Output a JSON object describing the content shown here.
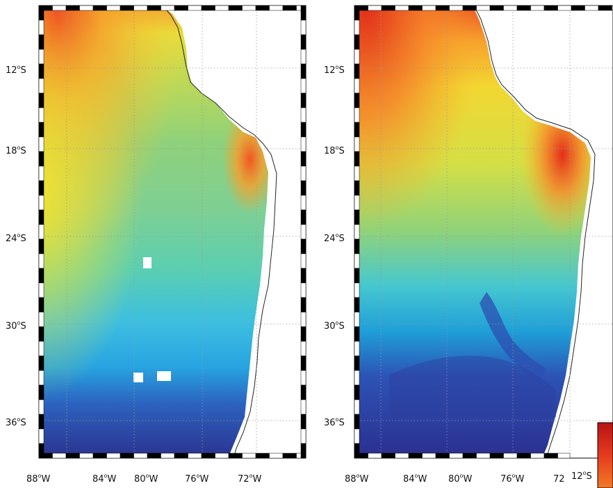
{
  "maps": [
    {
      "id": "left",
      "y_ticks": [
        {
          "value": "12",
          "hemi": "S"
        },
        {
          "value": "18",
          "hemi": "S"
        },
        {
          "value": "24",
          "hemi": "S"
        },
        {
          "value": "30",
          "hemi": "S"
        },
        {
          "value": "36",
          "hemi": "S"
        }
      ],
      "x_ticks": [
        {
          "value": "88",
          "hemi": "W"
        },
        {
          "value": "84",
          "hemi": "W"
        },
        {
          "value": "80",
          "hemi": "W"
        },
        {
          "value": "76",
          "hemi": "W"
        },
        {
          "value": "72",
          "hemi": "W"
        }
      ]
    },
    {
      "id": "right",
      "y_ticks": [
        {
          "value": "12",
          "hemi": "S"
        },
        {
          "value": "18",
          "hemi": "S"
        },
        {
          "value": "24",
          "hemi": "S"
        },
        {
          "value": "30",
          "hemi": "S"
        },
        {
          "value": "36",
          "hemi": "S"
        }
      ],
      "x_ticks": [
        {
          "value": "88",
          "hemi": "W"
        },
        {
          "value": "84",
          "hemi": "W"
        },
        {
          "value": "80",
          "hemi": "W"
        },
        {
          "value": "76",
          "hemi": "W"
        },
        {
          "value": "72",
          "hemi": ""
        }
      ]
    }
  ],
  "extra_label": {
    "value": "12",
    "hemi": "S"
  },
  "colormap": [
    "#2b2f8f",
    "#2c53b5",
    "#1f9fd8",
    "#3cc6d8",
    "#5ccfb0",
    "#8fd17a",
    "#c8dc4c",
    "#f0e632",
    "#f7a52c",
    "#ef4f22",
    "#cc1515"
  ],
  "land_color": "#ffffff",
  "coastline_color": "#222222"
}
